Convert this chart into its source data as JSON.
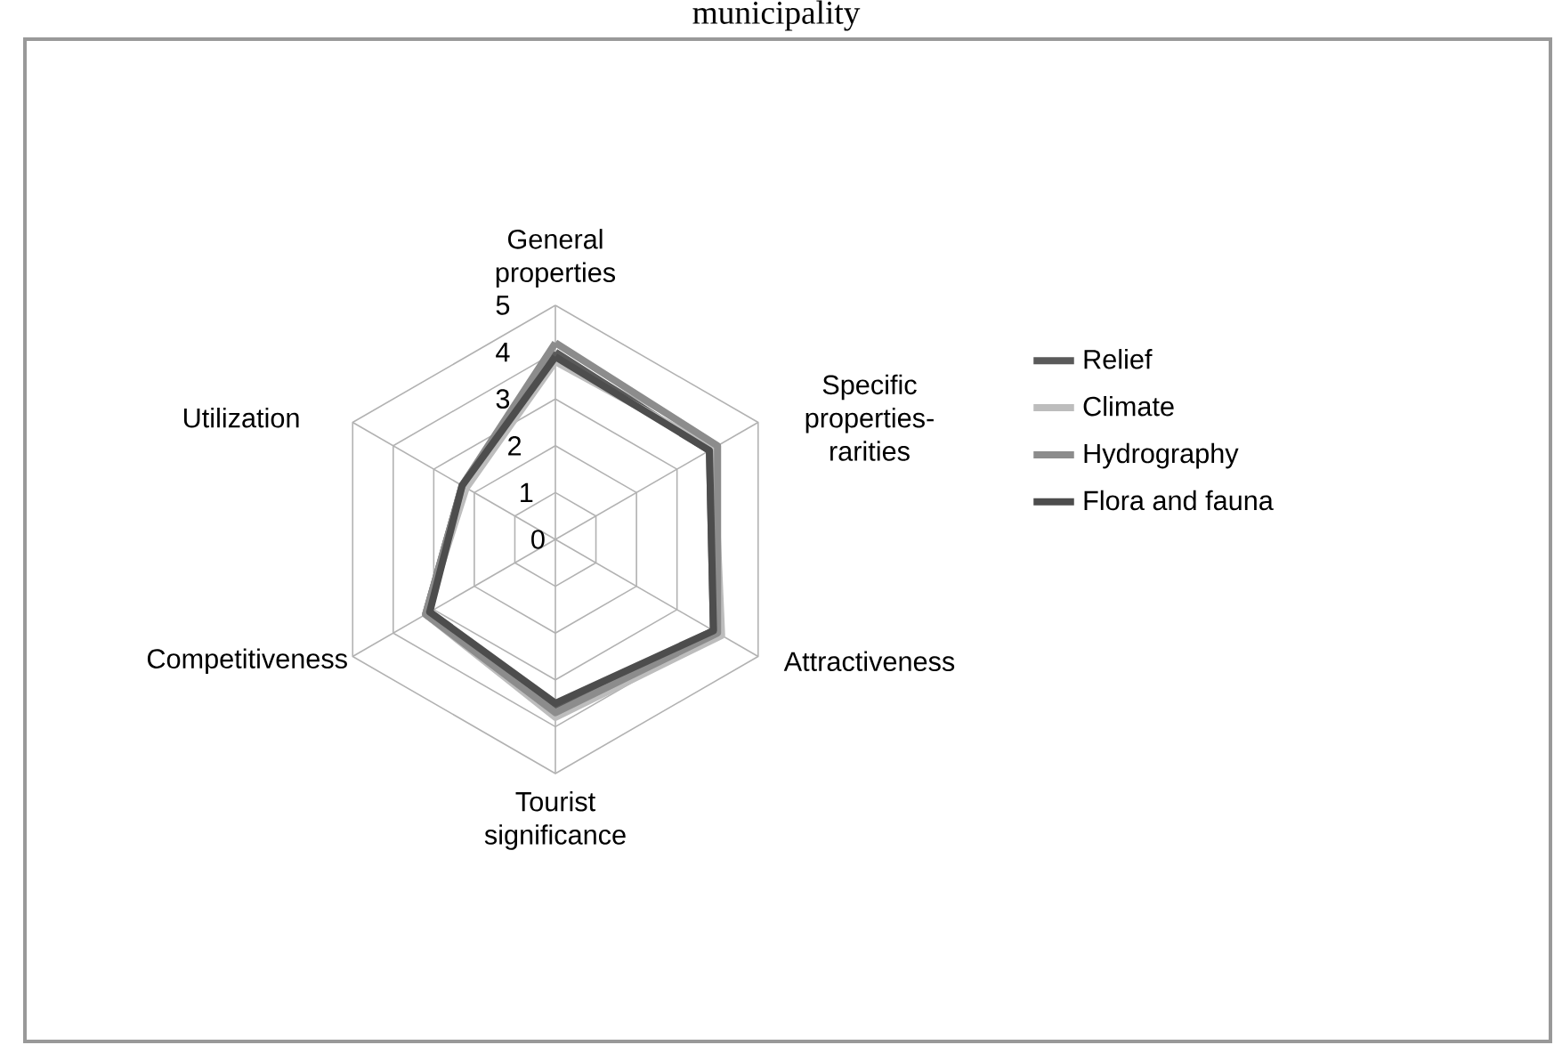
{
  "chart_data": {
    "type": "radar",
    "title": "municipality",
    "categories": [
      "General properties",
      "Specific properties-rarities",
      "Attractiveness",
      "Tourist significance",
      "Competitiveness",
      "Utilization"
    ],
    "series": [
      {
        "name": "Relief",
        "color": "#5a5a5a",
        "values": [
          4.0,
          3.8,
          3.9,
          3.6,
          3.2,
          2.3
        ]
      },
      {
        "name": "Climate",
        "color": "#bdbdbd",
        "values": [
          3.8,
          3.9,
          4.1,
          3.8,
          3.2,
          2.2
        ]
      },
      {
        "name": "Hydrography",
        "color": "#8c8c8c",
        "values": [
          4.2,
          4.0,
          4.0,
          3.7,
          3.2,
          2.3
        ]
      },
      {
        "name": "Flora and fauna",
        "color": "#4d4d4d",
        "values": [
          3.9,
          3.8,
          3.9,
          3.5,
          3.1,
          2.3
        ]
      }
    ],
    "ylim": [
      0,
      5
    ],
    "yticks": [
      0,
      1,
      2,
      3,
      4,
      5
    ],
    "grid": true,
    "legend": "right",
    "marker": "none",
    "line_style": "solid"
  }
}
